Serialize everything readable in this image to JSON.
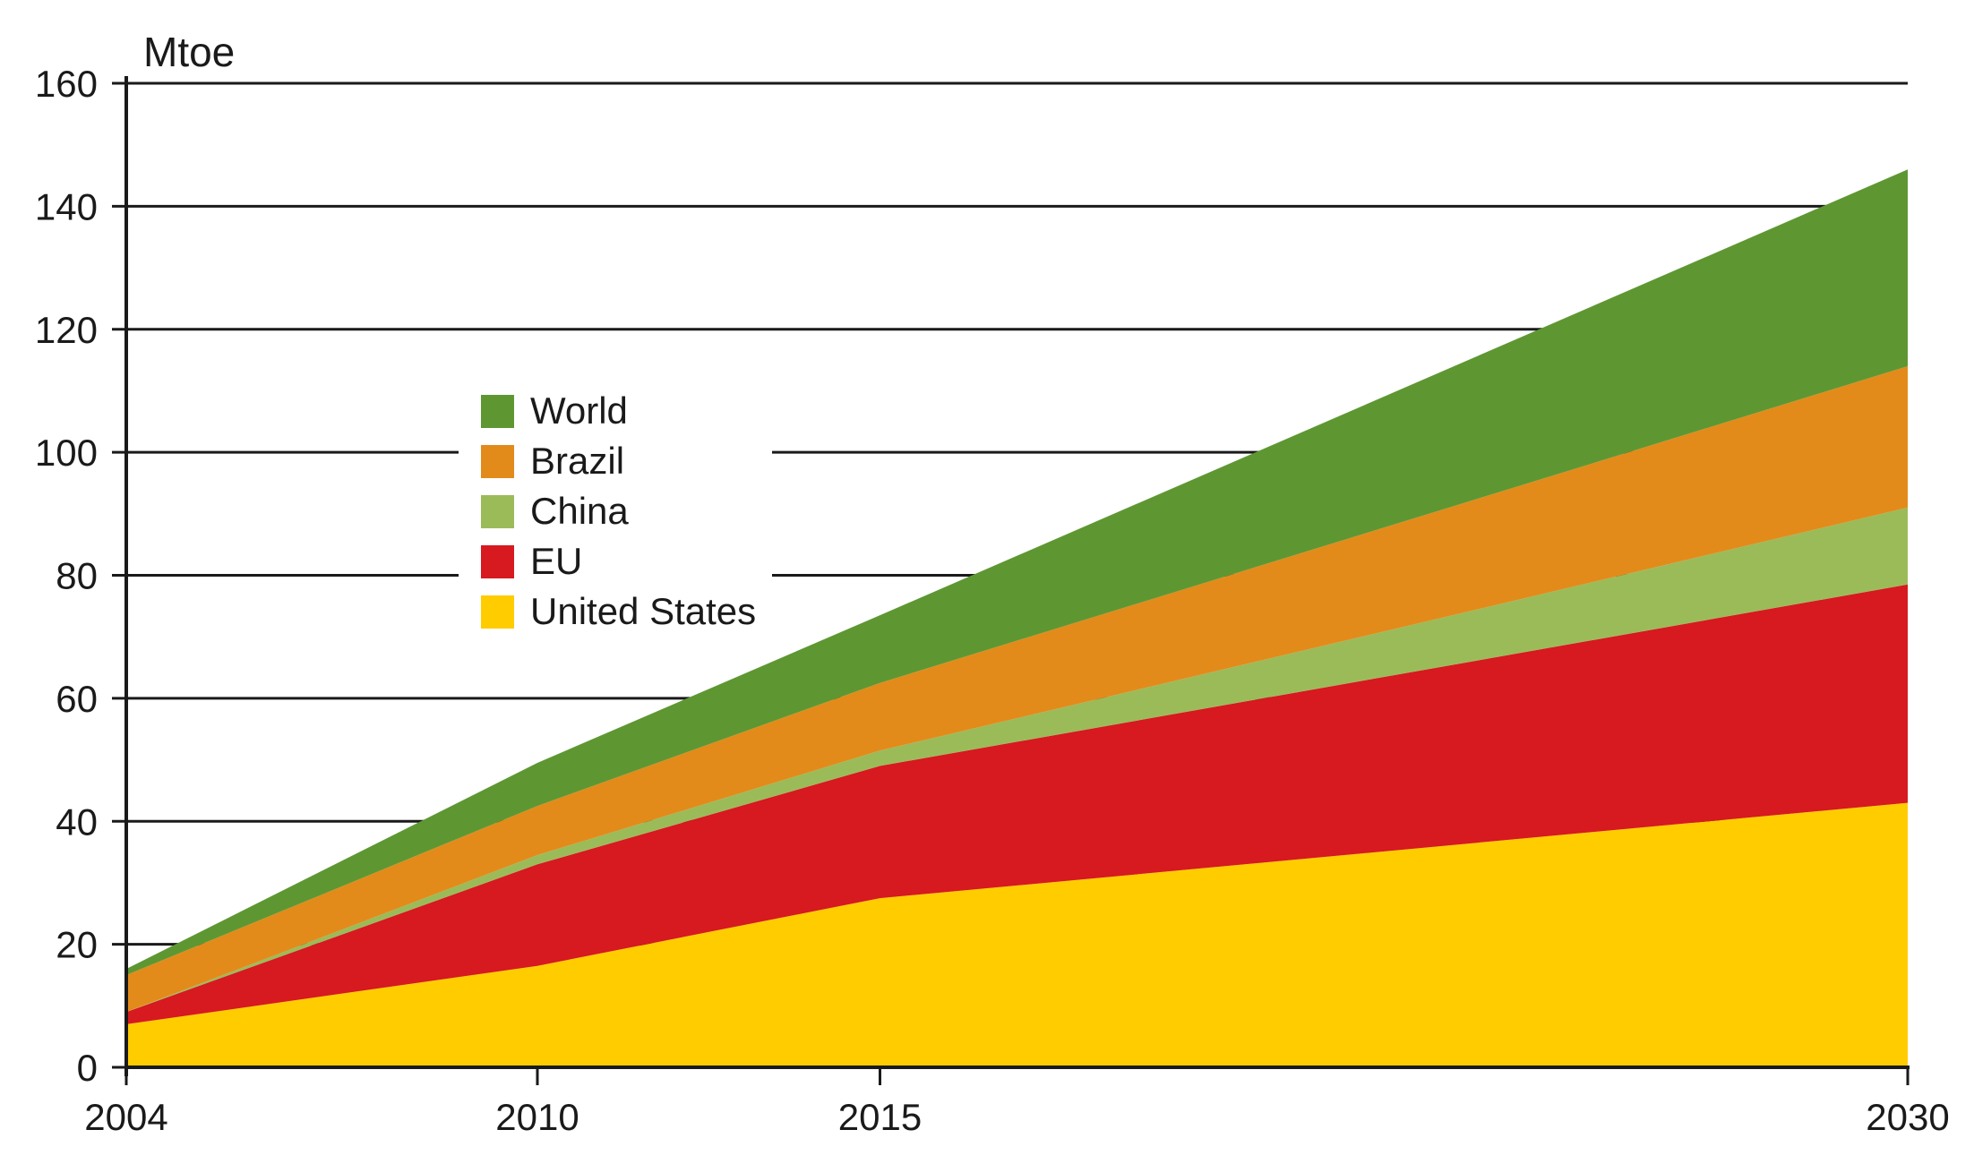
{
  "chart_data": {
    "type": "area",
    "stacked": true,
    "unit_label": "Mtoe",
    "title": "",
    "xlabel": "",
    "ylabel": "Mtoe",
    "x": [
      2004,
      2010,
      2015,
      2030
    ],
    "x_tick_labels": [
      "2004",
      "2010",
      "2015",
      "2030"
    ],
    "ylim": [
      0,
      160
    ],
    "y_ticks": [
      0,
      20,
      40,
      60,
      80,
      100,
      120,
      140,
      160
    ],
    "y_tick_labels": [
      "0",
      "20",
      "40",
      "60",
      "80",
      "100",
      "120",
      "140",
      "160"
    ],
    "grid": true,
    "legend_position": "upper-left-center",
    "series": [
      {
        "name": "United States",
        "color": "#FFCC00",
        "values": [
          7,
          16.5,
          27.5,
          43
        ]
      },
      {
        "name": "EU",
        "color": "#D71920",
        "values": [
          2,
          16.5,
          21.5,
          35.5
        ]
      },
      {
        "name": "China",
        "color": "#9BBB59",
        "values": [
          0,
          1.5,
          2.5,
          12.5
        ]
      },
      {
        "name": "Brazil",
        "color": "#E28B1B",
        "values": [
          6,
          8,
          11,
          23
        ]
      },
      {
        "name": "World",
        "color": "#5E9732",
        "values": [
          1,
          7,
          11,
          32
        ]
      }
    ],
    "legend_order": [
      "World",
      "Brazil",
      "China",
      "EU",
      "United States"
    ]
  }
}
